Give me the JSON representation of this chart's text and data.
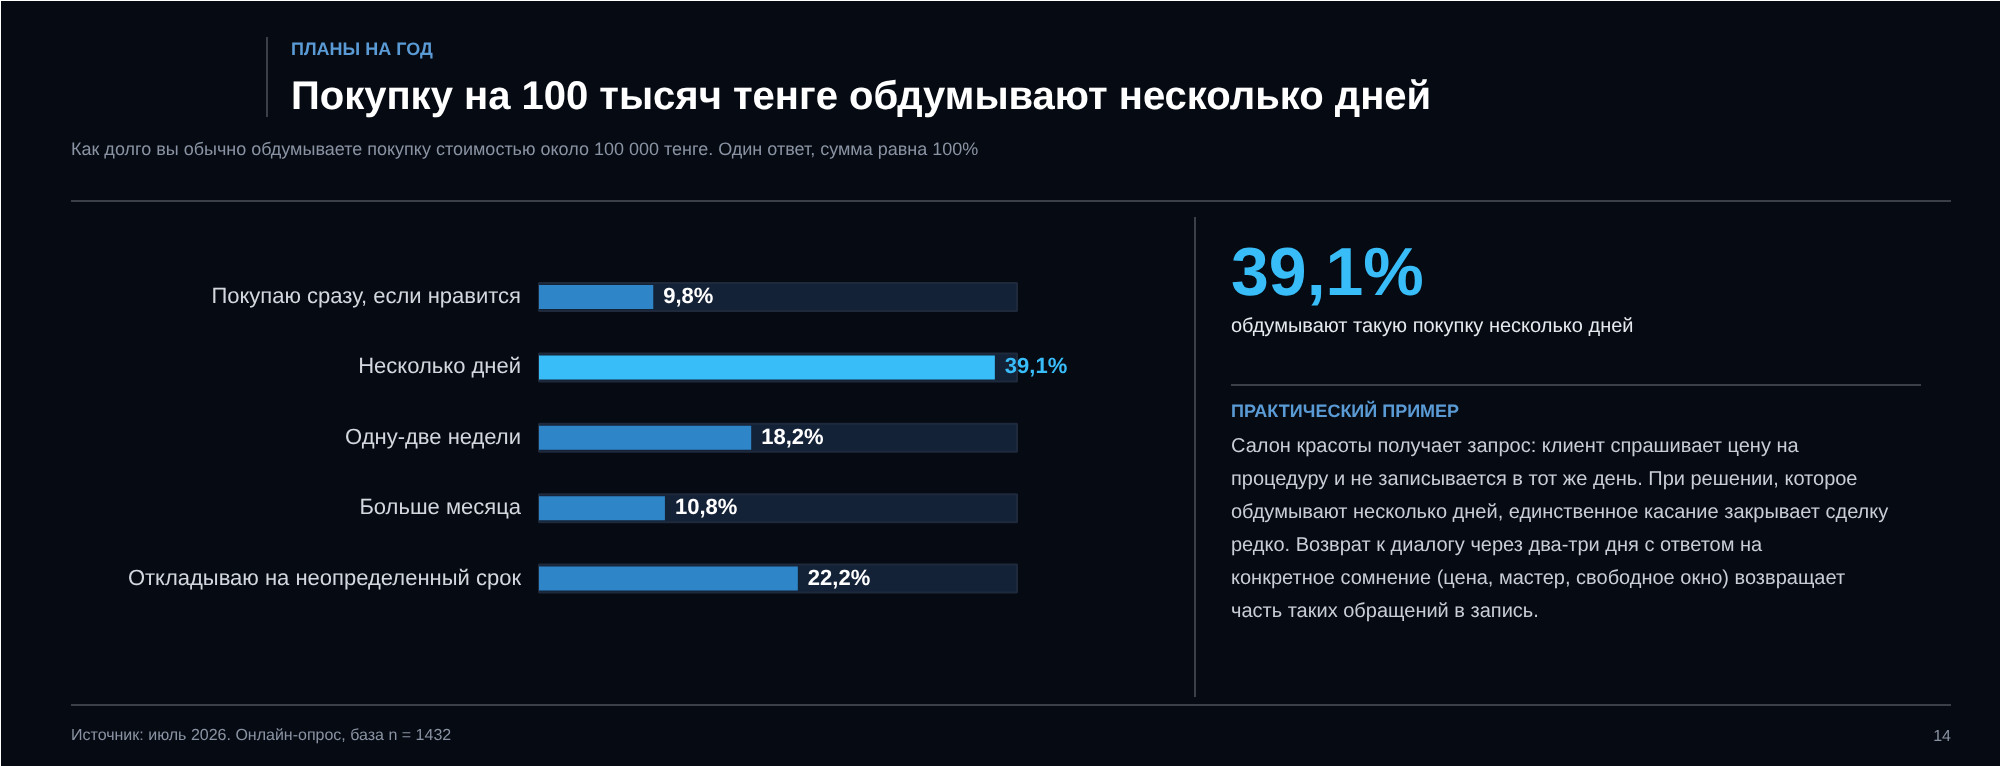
{
  "chart_data": {
    "type": "bar",
    "orientation": "horizontal",
    "title": "Покупку на 100 тысяч тенге обдумывают несколько дней",
    "subtitle": "Как долго вы обычно обдумываете покупку стоимостью около 100 000 тенге. Один ответ, сумма равна 100%",
    "categories": [
      "Покупаю сразу, если нравится",
      "Несколько дней",
      "Одну-две недели",
      "Больше месяца",
      "Откладываю на неопределенный срок"
    ],
    "values": [
      9.8,
      39.1,
      18.2,
      10.8,
      22.2
    ],
    "colors": [
      "#2e86c8",
      "#38bdf8",
      "#2e86c8",
      "#2e86c8",
      "#2e86c8"
    ],
    "value_labels": [
      "9,8%",
      "39,1%",
      "18,2%",
      "10,8%",
      "22,2%"
    ],
    "xlim": [
      0,
      41
    ],
    "tick_labels": false,
    "grid": false,
    "annotations": [
      "ПЛАНЫ НА ГОД",
      "39,1%",
      "обдумывают такую покупку несколько дней",
      "ПРАКТИЧЕСКИЙ ПРИМЕР",
      "Салон красоты получает запрос: клиент спрашивает цену на процедуру и не записывается в тот же день. При решении, которое обдумывают несколько дней, единственное касание закрывает сделку редко. Возврат к диалогу через два-три дня с ответом на конкретное сомнение (цена, мастер, свободное окно) возвращает часть таких обращений в запись.",
      "Источник: июль 2026. Онлайн-опрос, база n = 1432",
      "14"
    ]
  }
}
